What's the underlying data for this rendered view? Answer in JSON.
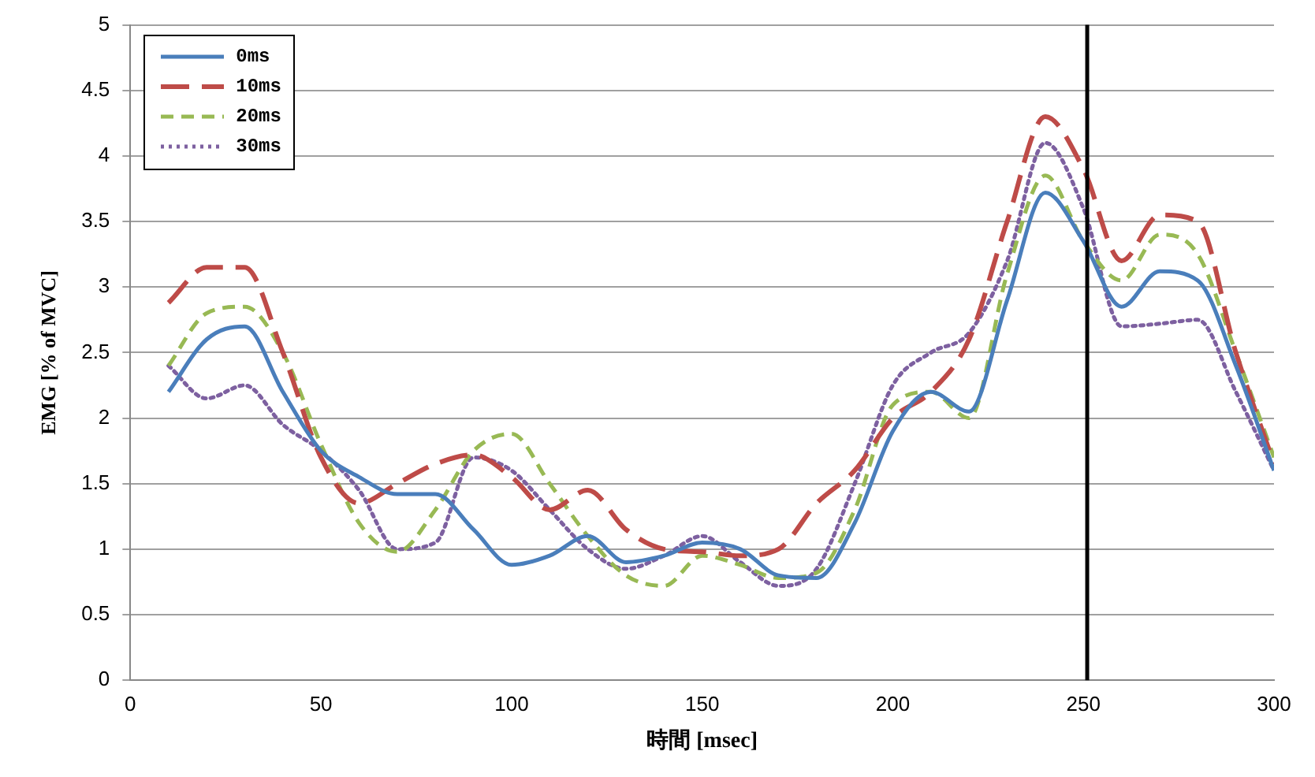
{
  "chart_data": {
    "type": "line",
    "xlabel": "時間 [msec]",
    "ylabel": "EMG [% of MVC]",
    "x": [
      10,
      20,
      30,
      40,
      50,
      60,
      70,
      80,
      90,
      100,
      110,
      120,
      130,
      140,
      150,
      160,
      170,
      180,
      190,
      200,
      210,
      220,
      230,
      240,
      250,
      260,
      270,
      280,
      290,
      300
    ],
    "series": [
      {
        "name": "0ms",
        "color": "#4a7ebb",
        "line_style": "solid",
        "values": [
          2.2,
          2.6,
          2.7,
          2.2,
          1.75,
          1.55,
          1.42,
          1.42,
          1.15,
          0.88,
          0.95,
          1.1,
          0.9,
          0.95,
          1.05,
          1.0,
          0.8,
          0.78,
          1.2,
          1.9,
          2.2,
          2.05,
          2.9,
          3.72,
          3.35,
          2.85,
          3.12,
          3.05,
          2.4,
          1.6
        ]
      },
      {
        "name": "10ms",
        "color": "#be4b48",
        "line_style": "dashed",
        "values": [
          2.88,
          3.15,
          3.15,
          2.5,
          1.7,
          1.35,
          1.5,
          1.65,
          1.72,
          1.55,
          1.3,
          1.45,
          1.15,
          1.0,
          0.98,
          0.95,
          1.0,
          1.35,
          1.6,
          2.0,
          2.2,
          2.6,
          3.5,
          4.3,
          3.9,
          3.2,
          3.55,
          3.5,
          2.5,
          1.65
        ]
      },
      {
        "name": "20ms",
        "color": "#98b954",
        "line_style": "dashed",
        "values": [
          2.4,
          2.8,
          2.85,
          2.5,
          1.8,
          1.2,
          0.98,
          1.3,
          1.75,
          1.88,
          1.5,
          1.1,
          0.8,
          0.72,
          0.95,
          0.88,
          0.78,
          0.82,
          1.3,
          2.1,
          2.2,
          2.0,
          3.1,
          3.85,
          3.35,
          3.05,
          3.4,
          3.25,
          2.5,
          1.7
        ]
      },
      {
        "name": "30ms",
        "color": "#7d60a0",
        "line_style": "dotted",
        "values": [
          2.4,
          2.15,
          2.25,
          1.95,
          1.75,
          1.45,
          1.0,
          1.05,
          1.7,
          1.6,
          1.3,
          1.0,
          0.85,
          0.95,
          1.1,
          0.9,
          0.72,
          0.85,
          1.5,
          2.25,
          2.5,
          2.65,
          3.2,
          4.1,
          3.6,
          2.7,
          2.72,
          2.75,
          2.2,
          1.6
        ]
      }
    ],
    "xlim": [
      0,
      300
    ],
    "xticks": [
      0,
      50,
      100,
      150,
      200,
      250,
      300
    ],
    "ylim": [
      0,
      5
    ],
    "yticks": [
      0,
      0.5,
      1,
      1.5,
      2,
      2.5,
      3,
      3.5,
      4,
      4.5,
      5
    ],
    "ref_lines": [
      {
        "axis": "x",
        "value": 251,
        "color": "#000000"
      }
    ],
    "grid": "y",
    "legend": "top left",
    "marker": "none"
  }
}
